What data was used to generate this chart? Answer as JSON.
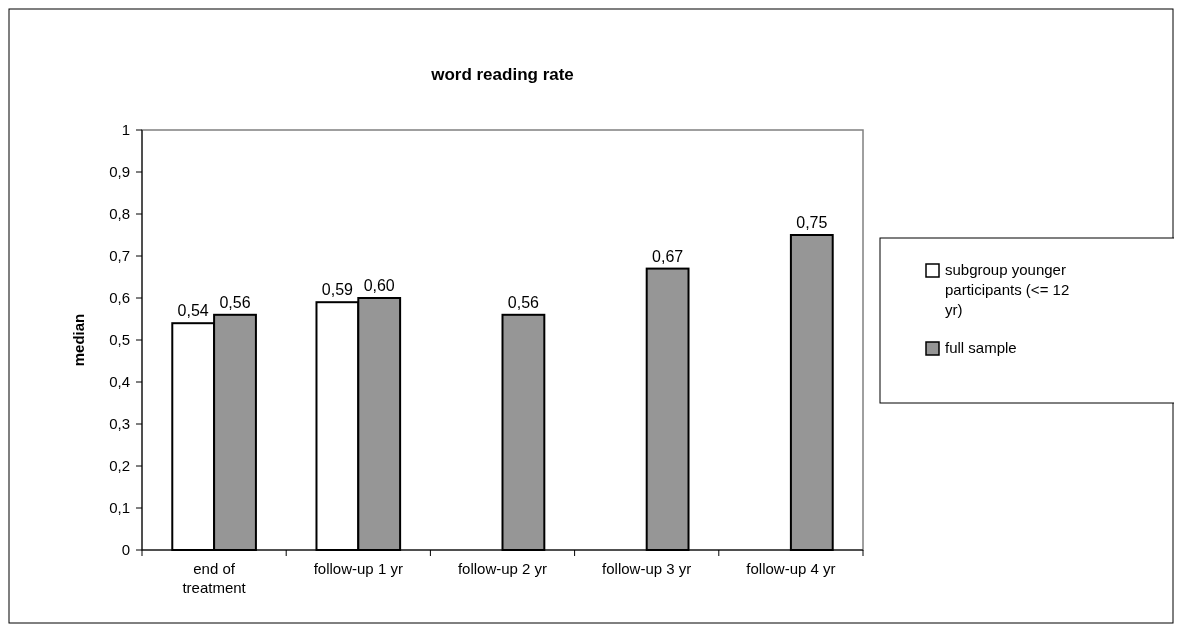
{
  "chart_data": {
    "type": "bar",
    "title": "word reading rate",
    "ylabel": "median",
    "categories": [
      "end of treatment",
      "follow-up 1 yr",
      "follow-up 2 yr",
      "follow-up 3 yr",
      "follow-up 4 yr"
    ],
    "series": [
      {
        "name": "subgroup younger participants (<= 12 yr)",
        "color": "#ffffff",
        "values": [
          0.54,
          0.59,
          null,
          null,
          null
        ],
        "value_labels": [
          "0,54",
          "0,59",
          null,
          null,
          null
        ]
      },
      {
        "name": "full sample",
        "color": "#969696",
        "values": [
          0.56,
          0.6,
          0.56,
          0.67,
          0.75
        ],
        "value_labels": [
          "0,56",
          "0,60",
          "0,56",
          "0,67",
          "0,75"
        ]
      }
    ],
    "ylim": [
      0,
      1
    ],
    "yticks": [
      0,
      {
        "value": 0.1,
        "label": "0,1"
      },
      {
        "value": 0.2,
        "label": "0,2"
      },
      {
        "value": 0.3,
        "label": "0,3"
      },
      {
        "value": 0.4,
        "label": "0,4"
      },
      {
        "value": 0.5,
        "label": "0,5"
      },
      {
        "value": 0.6,
        "label": "0,6"
      },
      {
        "value": 0.7,
        "label": "0,7"
      },
      {
        "value": 0.8,
        "label": "0,8"
      },
      {
        "value": 0.9,
        "label": "0,9"
      },
      1
    ],
    "grid": false,
    "legend": "right"
  }
}
